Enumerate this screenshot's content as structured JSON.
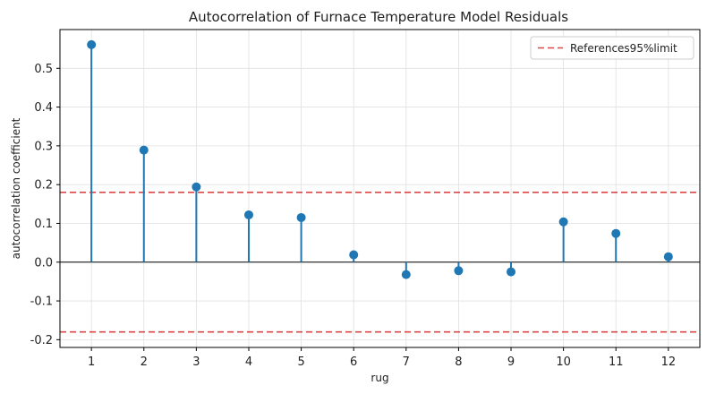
{
  "chart_data": {
    "type": "stem",
    "title": "Autocorrelation of Furnace Temperature Model Residuals",
    "xlabel": "rug",
    "ylabel": "autocorrelation coefficient",
    "x": [
      1,
      2,
      3,
      4,
      5,
      6,
      7,
      8,
      9,
      10,
      11,
      12
    ],
    "values": [
      0.561,
      0.289,
      0.194,
      0.122,
      0.115,
      0.019,
      -0.032,
      -0.022,
      -0.025,
      0.104,
      0.074,
      0.014
    ],
    "xlim": [
      0.4,
      12.6
    ],
    "ylim": [
      -0.22,
      0.6
    ],
    "yticks": [
      -0.2,
      -0.1,
      0.0,
      0.1,
      0.2,
      0.3,
      0.4,
      0.5
    ],
    "ytick_labels": [
      "-0.2",
      "-0.1",
      "0.0",
      "0.1",
      "0.2",
      "0.3",
      "0.4",
      "0.5"
    ],
    "xticks": [
      1,
      2,
      3,
      4,
      5,
      6,
      7,
      8,
      9,
      10,
      11,
      12
    ],
    "xtick_labels": [
      "1",
      "2",
      "3",
      "4",
      "5",
      "6",
      "7",
      "8",
      "9",
      "10",
      "11",
      "12"
    ],
    "reference_lines": [
      0.18,
      -0.18
    ],
    "legend": {
      "label": "References95%limit",
      "position": "top-right"
    },
    "grid": true,
    "colors": {
      "stem": "#1f77b4",
      "reference": "#d62728",
      "grid": "#e0e0e0",
      "zero": "#000000"
    }
  }
}
